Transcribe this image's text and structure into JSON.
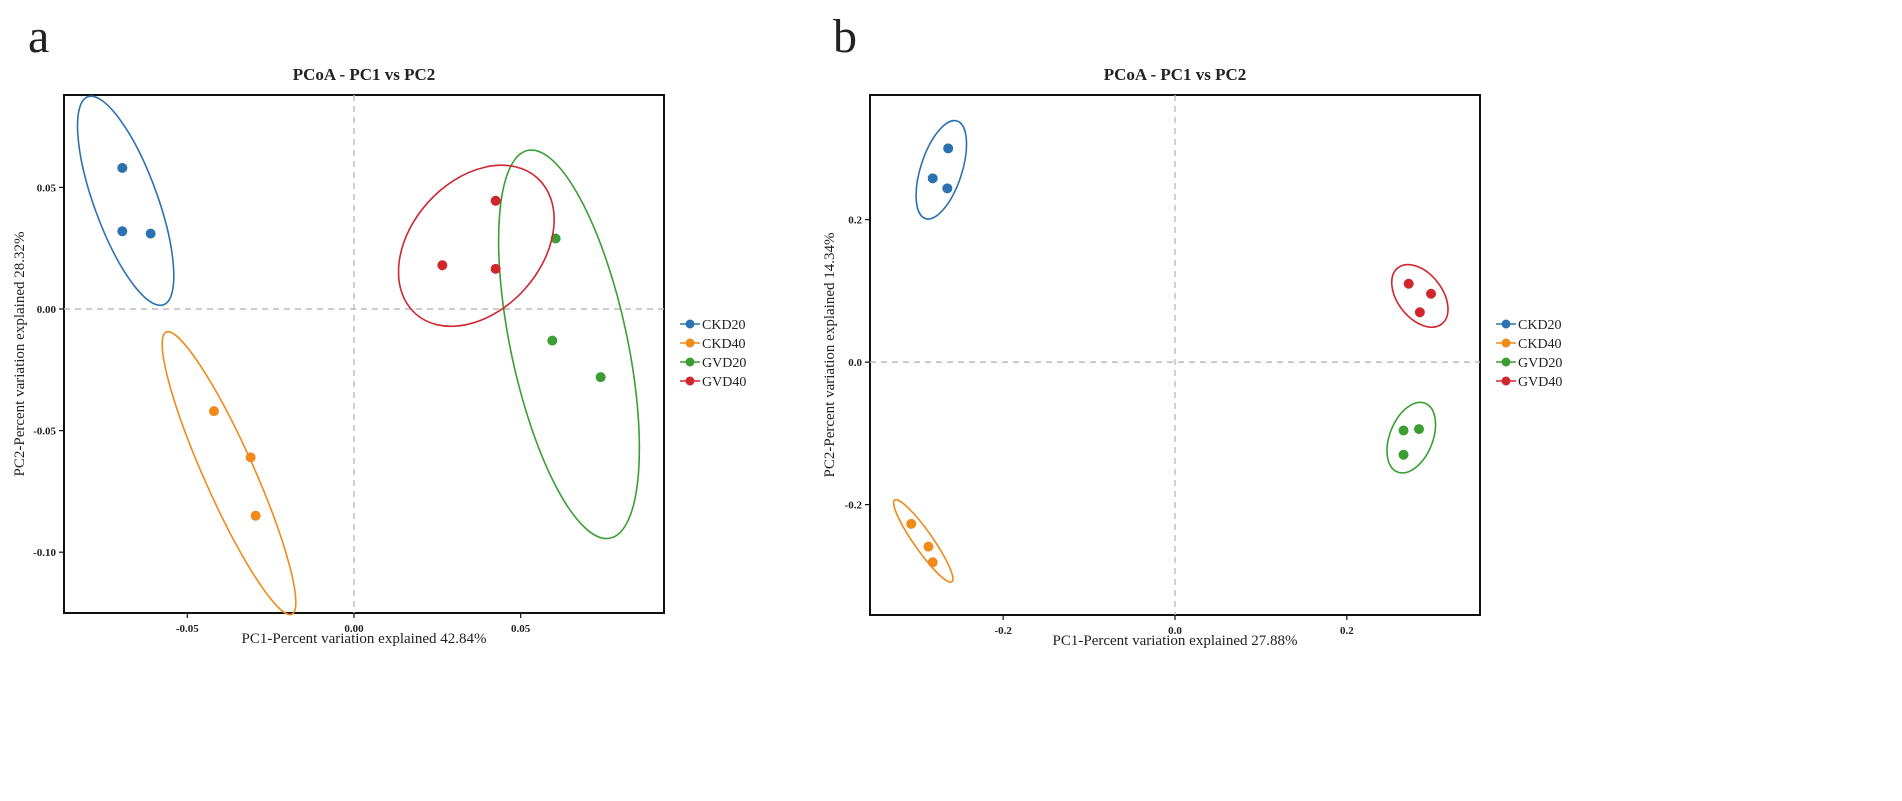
{
  "colors": {
    "CKD20": "#2d72b0",
    "CKD40": "#ef8a1b",
    "GVD20": "#3a9e34",
    "GVD40": "#d0262e",
    "axis": "#111111",
    "dash": "#bbbbbb"
  },
  "chart_data": [
    {
      "type": "scatter",
      "panel_letter": "a",
      "title": "PCoA - PC1 vs PC2",
      "xlabel": "PC1-Percent variation explained 42.84%",
      "ylabel": "PC2-Percent variation explained 28.32%",
      "xlim": [
        -0.087,
        0.093
      ],
      "ylim": [
        -0.125,
        0.088
      ],
      "xticks": [
        -0.05,
        0.0,
        0.05
      ],
      "xtick_labels": [
        "-0.05",
        "0.00",
        "0.05"
      ],
      "yticks": [
        0.05,
        0.0,
        -0.05,
        -0.1
      ],
      "ytick_labels": [
        "0.05",
        "0.00",
        "-0.05",
        "-0.10"
      ],
      "legend": [
        "CKD20",
        "CKD40",
        "GVD20",
        "GVD40"
      ],
      "legend_position": "right",
      "series": [
        {
          "name": "CKD20",
          "x": [
            -0.0695,
            -0.0695,
            -0.061
          ],
          "y": [
            0.058,
            0.032,
            0.031
          ],
          "ellipse": {
            "cx": -0.0685,
            "cy": 0.0445,
            "rx": 0.0095,
            "ry": 0.0455,
            "angle_deg": -20
          }
        },
        {
          "name": "CKD40",
          "x": [
            -0.042,
            -0.031,
            -0.0295
          ],
          "y": [
            -0.042,
            -0.061,
            -0.085
          ],
          "ellipse": {
            "cx": -0.0375,
            "cy": -0.0675,
            "rx": 0.0075,
            "ry": 0.0635,
            "angle_deg": -24
          }
        },
        {
          "name": "GVD20",
          "x": [
            0.0605,
            0.0595,
            0.074
          ],
          "y": [
            0.029,
            -0.013,
            -0.028
          ],
          "ellipse": {
            "cx": 0.0645,
            "cy": -0.0145,
            "rx": 0.0175,
            "ry": 0.0815,
            "angle_deg": -12
          }
        },
        {
          "name": "GVD40",
          "x": [
            0.0425,
            0.0265,
            0.0425
          ],
          "y": [
            0.0445,
            0.018,
            0.0165
          ],
          "ellipse": {
            "cx": 0.0367,
            "cy": 0.026,
            "rx": 0.0195,
            "ry": 0.0375,
            "angle_deg": 42
          }
        }
      ]
    },
    {
      "type": "scatter",
      "panel_letter": "b",
      "title": "PCoA - PC1 vs PC2",
      "xlabel": "PC1-Percent variation explained 27.88%",
      "ylabel": "PC2-Percent variation explained 14.34%",
      "xlim": [
        -0.355,
        0.355
      ],
      "ylim": [
        -0.355,
        0.375
      ],
      "xticks": [
        -0.2,
        0.0,
        0.2
      ],
      "xtick_labels": [
        "-0.2",
        "0.0",
        "0.2"
      ],
      "yticks": [
        0.2,
        0.0,
        -0.2
      ],
      "ytick_labels": [
        "0.2",
        "0.0",
        "-0.2"
      ],
      "legend": [
        "CKD20",
        "CKD40",
        "GVD20",
        "GVD40"
      ],
      "legend_position": "right",
      "series": [
        {
          "name": "CKD20",
          "x": [
            -0.282,
            -0.264,
            -0.265
          ],
          "y": [
            0.258,
            0.3,
            0.244
          ],
          "ellipse": {
            "cx": -0.272,
            "cy": 0.27,
            "rx": 0.024,
            "ry": 0.072,
            "angle_deg": 18
          }
        },
        {
          "name": "CKD40",
          "x": [
            -0.307,
            -0.287,
            -0.282
          ],
          "y": [
            -0.227,
            -0.259,
            -0.281
          ],
          "ellipse": {
            "cx": -0.293,
            "cy": -0.251,
            "rx": 0.011,
            "ry": 0.07,
            "angle_deg": -35
          }
        },
        {
          "name": "GVD20",
          "x": [
            0.266,
            0.284,
            0.266
          ],
          "y": [
            -0.096,
            -0.094,
            -0.13
          ],
          "ellipse": {
            "cx": 0.275,
            "cy": -0.106,
            "rx": 0.025,
            "ry": 0.052,
            "angle_deg": 22
          }
        },
        {
          "name": "GVD40",
          "x": [
            0.272,
            0.298,
            0.285
          ],
          "y": [
            0.11,
            0.096,
            0.07
          ],
          "ellipse": {
            "cx": 0.285,
            "cy": 0.093,
            "rx": 0.026,
            "ry": 0.05,
            "angle_deg": -38
          }
        }
      ]
    }
  ]
}
